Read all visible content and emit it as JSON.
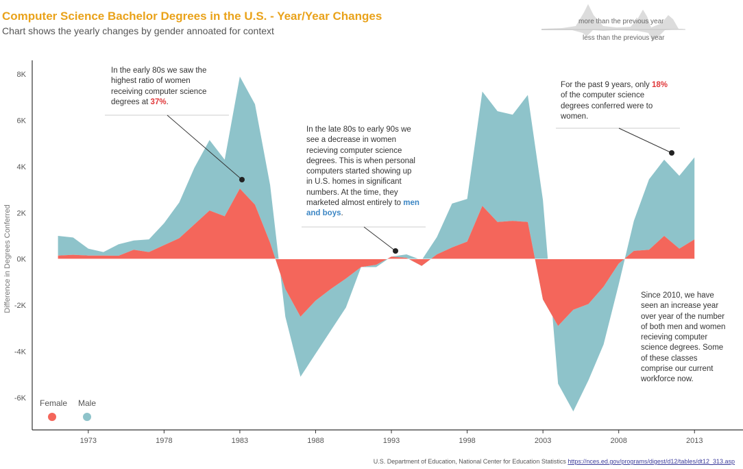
{
  "header": {
    "title": "Computer Science Bachelor Degrees in the U.S. - Year/Year Changes",
    "subtitle": "Chart shows the yearly changes by gender annoated for context"
  },
  "mini_legend": {
    "more_label": "more than the previous year",
    "less_label": "less than the previous year"
  },
  "legend": {
    "female_label": "Female",
    "male_label": "Male"
  },
  "colors": {
    "female": "#f4665b",
    "male": "#8ec3ca",
    "title": "#e9a21a",
    "highlight_red": "#e0383a",
    "highlight_blue": "#3c86c4"
  },
  "annotations": {
    "early80s": {
      "before": "In the early 80s we saw the highest ratio of women receiving computer science degrees at ",
      "highlight": "37%",
      "after": "."
    },
    "late80s": {
      "before": "In the late 80s to early 90s we see a decrease in women recieving computer science degrees. This is when personal computers started showing up in U.S. homes in significant numbers. At the time, they marketed almost entirely to ",
      "highlight": "men and boys",
      "after": "."
    },
    "past9": {
      "before": "For the past 9 years, only ",
      "highlight": "18%",
      "after": " of the computer science degrees conferred were to women."
    },
    "since2010": {
      "text": "Since 2010, we have seen an increase year over year of the number of both men and women recieving computer science degrees. Some of these classes comprise our current workforce now."
    }
  },
  "source": {
    "text": "U.S. Department of Education, National Center for Education Statistics ",
    "link": "https://nces.ed.gov/programs/digest/d12/tables/dt12_313.asp"
  },
  "chart_data": {
    "type": "area",
    "title": "Computer Science Bachelor Degrees in the U.S. - Year/Year Changes",
    "ylabel": "Difference in Degrees Conferred",
    "xlabel": "",
    "xlim": [
      1969.3,
      2016.2
    ],
    "ylim": [
      -7400,
      8600
    ],
    "yticks": [
      -6000,
      -4000,
      -2000,
      0,
      2000,
      4000,
      6000,
      8000
    ],
    "ytick_labels": [
      "-6K",
      "-4K",
      "-2K",
      "0K",
      "2K",
      "4K",
      "6K",
      "8K"
    ],
    "xticks": [
      1973,
      1978,
      1983,
      1988,
      1993,
      1998,
      2003,
      2008,
      2013
    ],
    "grid": false,
    "legend": "bottom-left",
    "stacked": true,
    "x": [
      1971,
      1972,
      1973,
      1974,
      1975,
      1976,
      1977,
      1978,
      1979,
      1980,
      1981,
      1982,
      1983,
      1984,
      1985,
      1986,
      1987,
      1988,
      1989,
      1990,
      1991,
      1992,
      1993,
      1994,
      1995,
      1996,
      1997,
      1998,
      1999,
      2000,
      2001,
      2002,
      2003,
      2004,
      2005,
      2006,
      2007,
      2008,
      2009,
      2010,
      2011,
      2012,
      2013
    ],
    "series": [
      {
        "name": "Female",
        "values": [
          150,
          180,
          150,
          150,
          140,
          400,
          300,
          600,
          900,
          1500,
          2100,
          1850,
          3050,
          2350,
          700,
          -1300,
          -2500,
          -1800,
          -1300,
          -850,
          -350,
          -250,
          100,
          50,
          -300,
          200,
          500,
          750,
          2300,
          1600,
          1650,
          1600,
          -1750,
          -2900,
          -2200,
          -1950,
          -1200,
          -200,
          350,
          400,
          1000,
          450,
          850
        ]
      },
      {
        "name": "Male",
        "values": [
          850,
          750,
          300,
          150,
          500,
          400,
          550,
          950,
          1550,
          2450,
          3050,
          2450,
          4850,
          4350,
          2500,
          -1200,
          -2600,
          -2300,
          -1800,
          -1250,
          0,
          -100,
          0,
          150,
          250,
          750,
          1900,
          1850,
          4950,
          4800,
          4600,
          5500,
          4300,
          -2500,
          -4400,
          -3300,
          -2500,
          -900,
          1300,
          3050,
          3300,
          3150,
          3550
        ]
      }
    ]
  }
}
